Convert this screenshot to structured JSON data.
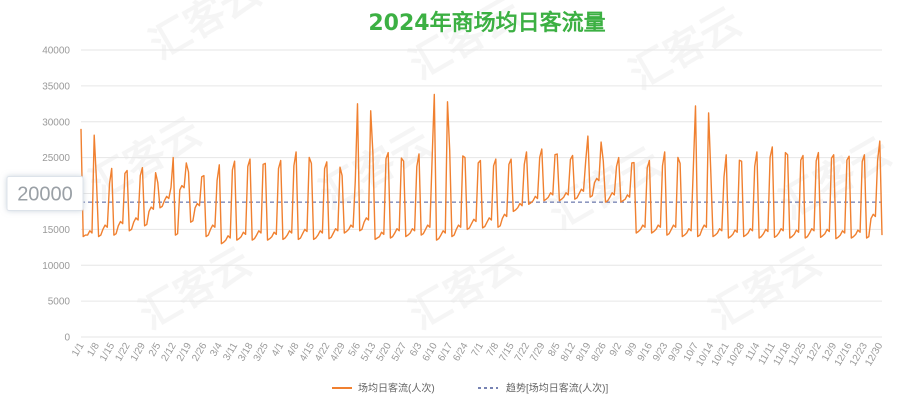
{
  "chart_data": {
    "type": "line",
    "title": "2024年商场均日客流量",
    "ylim": [
      0,
      40000
    ],
    "yticks": [
      0,
      5000,
      10000,
      15000,
      20000,
      25000,
      30000,
      35000,
      40000
    ],
    "start_date": "2024-01-01",
    "xtick_labels": [
      "1/1",
      "1/8",
      "1/15",
      "1/22",
      "1/29",
      "2/5",
      "2/12",
      "2/19",
      "2/26",
      "3/4",
      "3/11",
      "3/18",
      "3/25",
      "4/1",
      "4/8",
      "4/15",
      "4/22",
      "4/29",
      "5/6",
      "5/13",
      "5/20",
      "5/27",
      "6/3",
      "6/10",
      "6/17",
      "6/24",
      "7/1",
      "7/8",
      "7/15",
      "7/22",
      "7/29",
      "8/5",
      "8/12",
      "8/19",
      "8/26",
      "9/2",
      "9/9",
      "9/16",
      "9/23",
      "9/30",
      "10/7",
      "10/14",
      "10/21",
      "10/28",
      "11/4",
      "11/11",
      "11/18",
      "11/25",
      "12/2",
      "12/9",
      "12/16",
      "12/23",
      "12/30"
    ],
    "grid": true,
    "legend_position": "bottom",
    "series": [
      {
        "name": "场均日客流(人次)",
        "color": "#f08030",
        "weekly_pattern": [
          {
            "low": 14000,
            "mid": 14200,
            "peak": 29000
          },
          {
            "low": 14000,
            "mid": 15000,
            "peak": 22000
          },
          {
            "low": 14200,
            "mid": 15500,
            "peak": 23500
          },
          {
            "low": 14800,
            "mid": 16000,
            "peak": 23200
          },
          {
            "low": 15500,
            "mid": 17500,
            "peak": 23600
          },
          {
            "low": 18000,
            "mid": 19000,
            "peak": 21500
          },
          {
            "low": 14200,
            "mid": 20500,
            "peak": 25000
          },
          {
            "low": 16000,
            "mid": 18000,
            "peak": 23000
          },
          {
            "low": 14000,
            "mid": 15000,
            "peak": 22500
          },
          {
            "low": 13000,
            "mid": 13500,
            "peak": 24000
          },
          {
            "low": 13500,
            "mid": 14000,
            "peak": 24500
          },
          {
            "low": 13500,
            "mid": 14200,
            "peak": 24800
          },
          {
            "low": 13500,
            "mid": 14000,
            "peak": 24200
          },
          {
            "low": 13600,
            "mid": 14200,
            "peak": 24600
          },
          {
            "low": 13600,
            "mid": 14400,
            "peak": 25800
          },
          {
            "low": 13600,
            "mid": 14200,
            "peak": 24200
          },
          {
            "low": 13700,
            "mid": 14500,
            "peak": 24400
          },
          {
            "low": 14500,
            "mid": 15000,
            "peak": 22500
          },
          {
            "low": 14800,
            "mid": 16000,
            "peak": 32500
          },
          {
            "low": 13600,
            "mid": 14000,
            "peak": 25600
          },
          {
            "low": 13800,
            "mid": 14500,
            "peak": 25700
          },
          {
            "low": 14000,
            "mid": 14500,
            "peak": 24500
          },
          {
            "low": 14200,
            "mid": 15000,
            "peak": 25500
          },
          {
            "low": 13500,
            "mid": 14200,
            "peak": 33800
          },
          {
            "low": 14000,
            "mid": 15000,
            "peak": 26000
          },
          {
            "low": 15000,
            "mid": 15800,
            "peak": 25000
          },
          {
            "low": 15200,
            "mid": 16000,
            "peak": 24600
          },
          {
            "low": 15300,
            "mid": 16500,
            "peak": 24800
          },
          {
            "low": 17500,
            "mid": 18000,
            "peak": 24800
          },
          {
            "low": 18500,
            "mid": 19000,
            "peak": 25800
          },
          {
            "low": 19000,
            "mid": 19500,
            "peak": 26200
          },
          {
            "low": 19000,
            "mid": 19500,
            "peak": 25500
          },
          {
            "low": 19200,
            "mid": 20000,
            "peak": 25300
          },
          {
            "low": 19500,
            "mid": 21500,
            "peak": 28000
          },
          {
            "low": 18800,
            "mid": 19500,
            "peak": 24500
          },
          {
            "low": 18800,
            "mid": 19200,
            "peak": 25000
          },
          {
            "low": 14500,
            "mid": 15000,
            "peak": 24300
          },
          {
            "low": 14500,
            "mid": 15000,
            "peak": 24600
          },
          {
            "low": 14200,
            "mid": 15000,
            "peak": 25800
          },
          {
            "low": 14000,
            "mid": 14500,
            "peak": 24200
          },
          {
            "low": 14000,
            "mid": 15000,
            "peak": 32200
          },
          {
            "low": 14000,
            "mid": 14500,
            "peak": 23000
          },
          {
            "low": 13800,
            "mid": 14300,
            "peak": 25400
          },
          {
            "low": 14000,
            "mid": 14500,
            "peak": 24500
          },
          {
            "low": 13800,
            "mid": 14400,
            "peak": 25800
          },
          {
            "low": 13900,
            "mid": 14500,
            "peak": 26500
          },
          {
            "low": 13800,
            "mid": 14300,
            "peak": 25400
          },
          {
            "low": 13800,
            "mid": 14500,
            "peak": 25300
          },
          {
            "low": 13900,
            "mid": 14400,
            "peak": 25700
          },
          {
            "low": 13700,
            "mid": 14200,
            "peak": 25400
          },
          {
            "low": 13800,
            "mid": 14300,
            "peak": 25200
          },
          {
            "low": 13800,
            "mid": 16500,
            "peak": 25400
          },
          {
            "low": 14200,
            "mid": 15500,
            "peak": 27300
          }
        ]
      },
      {
        "name": "趋势[场均日客流(人次)]",
        "color": "#4a5a9a",
        "dashed": true,
        "value": 18800
      }
    ],
    "annotations": [
      {
        "text": "20000",
        "value": 20000
      }
    ]
  },
  "watermark": {
    "text": "汇客云"
  }
}
